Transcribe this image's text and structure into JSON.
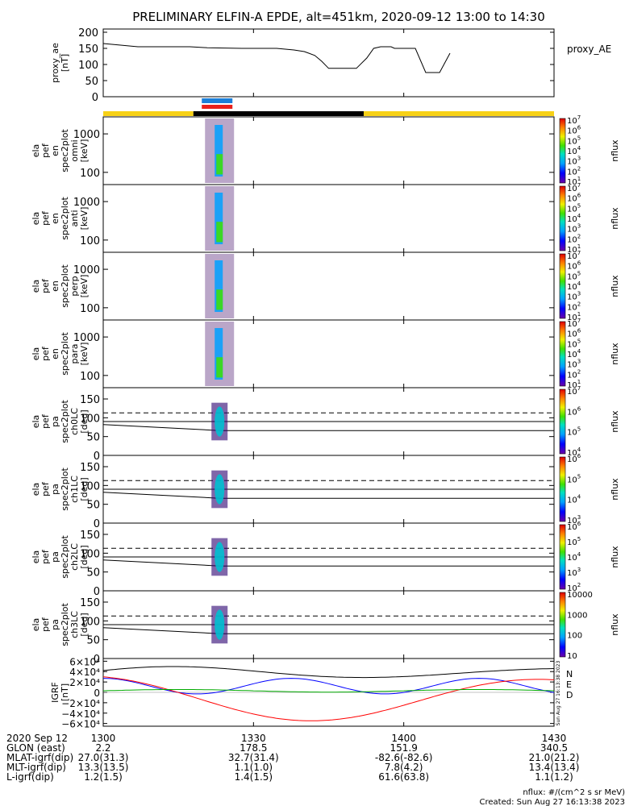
{
  "title": "PRELIMINARY ELFIN-A EPDE, alt=451km, 2020-09-12 13:00 to 14:30",
  "colors": {
    "orbit_yellow": "#f7d117",
    "orbit_black": "#000000",
    "sci_blue": "#1c7fd9",
    "sci_red": "#e8201c",
    "igrf_n": "#000000",
    "igrf_e": "#0000ff",
    "igrf_d": "#ff0000",
    "igrf_green": "#00aa00",
    "line": "#000000"
  },
  "chart_data": [
    {
      "type": "line",
      "panel": "proxy_ae",
      "ylabel": [
        "proxy_ae",
        "[nT]"
      ],
      "legend": "proxy_AE",
      "ylim": [
        0,
        210
      ],
      "yticks": [
        0,
        50,
        100,
        150,
        200
      ],
      "x": [
        1300,
        1310,
        1320,
        1325,
        1330,
        1340,
        1350,
        1355,
        1358,
        1361,
        1363,
        1365,
        1367,
        1373,
        1376,
        1378,
        1380,
        1383,
        1384,
        1390,
        1393,
        1397,
        1400
      ],
      "values": [
        165,
        155,
        155,
        155,
        152,
        150,
        150,
        145,
        140,
        128,
        110,
        88,
        88,
        88,
        120,
        150,
        155,
        155,
        150,
        150,
        75,
        75,
        135
      ]
    },
    {
      "type": "heatmap",
      "panel": "spec_omni",
      "ylabel": [
        "ela",
        "pef",
        "en",
        "spec2plot",
        "omni",
        "[keV]"
      ],
      "yticks": [
        100,
        1000
      ],
      "zlabel": "nflux",
      "zticks": [
        "10",
        "10",
        "10",
        "10",
        "10",
        "10",
        "10"
      ],
      "zexp": [
        "1",
        "2",
        "3",
        "4",
        "5",
        "6",
        "7"
      ]
    },
    {
      "type": "heatmap",
      "panel": "spec_anti",
      "ylabel": [
        "ela",
        "pef",
        "en",
        "spec2plot",
        "anti",
        "[keV]"
      ],
      "yticks": [
        100,
        1000
      ],
      "zlabel": "nflux",
      "zticks": [
        "10",
        "10",
        "10",
        "10",
        "10",
        "10",
        "10"
      ],
      "zexp": [
        "1",
        "2",
        "3",
        "4",
        "5",
        "6",
        "7"
      ]
    },
    {
      "type": "heatmap",
      "panel": "spec_perp",
      "ylabel": [
        "ela",
        "pef",
        "en",
        "spec2plot",
        "perp",
        "[keV]"
      ],
      "yticks": [
        100,
        1000
      ],
      "zlabel": "nflux",
      "zticks": [
        "10",
        "10",
        "10",
        "10",
        "10",
        "10",
        "10"
      ],
      "zexp": [
        "1",
        "2",
        "3",
        "4",
        "5",
        "6",
        "7"
      ]
    },
    {
      "type": "heatmap",
      "panel": "spec_para",
      "ylabel": [
        "ela",
        "pef",
        "en",
        "spec2plot",
        "para",
        "[keV]"
      ],
      "yticks": [
        100,
        1000
      ],
      "zlabel": "nflux",
      "zticks": [
        "10",
        "10",
        "10",
        "10",
        "10",
        "10",
        "10"
      ],
      "zexp": [
        "1",
        "2",
        "3",
        "4",
        "5",
        "6",
        "7"
      ]
    },
    {
      "type": "heatmap",
      "panel": "pa_ch0",
      "ylabel": [
        "ela",
        "pef",
        "pa",
        "spec2plot",
        "ch0LC",
        "[deg]"
      ],
      "yticks": [
        0,
        50,
        100,
        150
      ],
      "zlabel": "nflux",
      "zticks": [
        "10",
        "10",
        "10",
        "10"
      ],
      "zexp": [
        "4",
        "5",
        "6",
        "7"
      ]
    },
    {
      "type": "heatmap",
      "panel": "pa_ch1",
      "ylabel": [
        "ela",
        "pef",
        "pa",
        "spec2plot",
        "ch1LC",
        "[deg]"
      ],
      "yticks": [
        0,
        50,
        100,
        150
      ],
      "zlabel": "nflux",
      "zticks": [
        "10",
        "10",
        "10",
        "10"
      ],
      "zexp": [
        "3",
        "4",
        "5",
        "6"
      ]
    },
    {
      "type": "heatmap",
      "panel": "pa_ch2",
      "ylabel": [
        "ela",
        "pef",
        "pa",
        "spec2plot",
        "ch2LC",
        "[deg]"
      ],
      "yticks": [
        0,
        50,
        100,
        150
      ],
      "zlabel": "nflux",
      "zticks": [
        "10",
        "10",
        "10",
        "10",
        "10"
      ],
      "zexp": [
        "2",
        "3",
        "4",
        "5",
        "6"
      ]
    },
    {
      "type": "heatmap",
      "panel": "pa_ch3",
      "ylabel": [
        "ela",
        "pef",
        "pa",
        "spec2plot",
        "ch3LC",
        "[deg]"
      ],
      "yticks": [
        0,
        50,
        100,
        150
      ],
      "zlabel": "nflux",
      "zticks": [
        "10",
        "100",
        "1000",
        "10000"
      ],
      "zexp": [
        "",
        "",
        "",
        ""
      ]
    },
    {
      "type": "line",
      "panel": "igrf",
      "ylabel": [
        "IGRF",
        "[nT]"
      ],
      "ytick_labels": [
        "6×10⁴",
        "4×10⁴",
        "2×10⁴",
        "0",
        "−2×10⁴",
        "−4×10⁴",
        "−6×10⁴"
      ],
      "yticks": [
        60000,
        40000,
        20000,
        0,
        -20000,
        -40000,
        -60000
      ],
      "legend": [
        "N",
        "E",
        "D"
      ],
      "side_note": "Sun Aug 27 16:13:38 2023"
    }
  ],
  "xaxis": {
    "ticks": [
      "1300",
      "1330",
      "1400",
      "1430"
    ],
    "rows": [
      {
        "label": "2020 Sep 12",
        "values": [
          "1300",
          "1330",
          "1400",
          "1430"
        ]
      },
      {
        "label": "GLON (east)",
        "values": [
          "2.2",
          "178.5",
          "151.9",
          "340.5"
        ]
      },
      {
        "label": "MLAT-igrf(dip)",
        "values": [
          "27.0(31.3)",
          "32.7(31.4)",
          "-82.6(-82.6)",
          "21.0(21.2)"
        ]
      },
      {
        "label": "MLT-igrf(dip)",
        "values": [
          "13.3(13.5)",
          "1.1(1.0)",
          "7.8(4.2)",
          "13.4(13.4)"
        ]
      },
      {
        "label": "L-igrf(dip)",
        "values": [
          "1.2(1.5)",
          "1.4(1.5)",
          "61.6(63.8)",
          "1.1(1.2)"
        ]
      }
    ]
  },
  "footer": {
    "units": "nflux: #/(cm^2 s sr MeV)",
    "created": "Created: Sun Aug 27 16:13:38 2023"
  }
}
